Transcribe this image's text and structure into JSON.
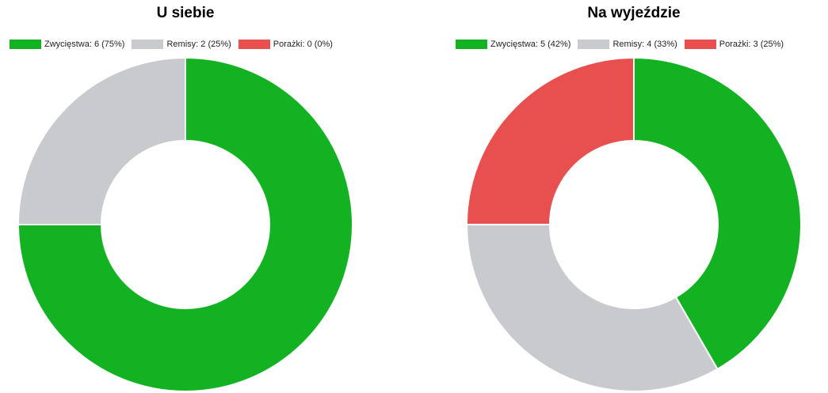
{
  "colors": {
    "wins": "#12b222",
    "draws": "#c9cacd",
    "losses": "#e85050"
  },
  "chart_data": [
    {
      "type": "pie",
      "variant": "donut",
      "title": "U siebie",
      "legend_labels": [
        "Zwycięstwa: 6 (75%)",
        "Remisy: 2 (25%)",
        "Porażki: 0 (0%)"
      ],
      "categories": [
        "Zwycięstwa",
        "Remisy",
        "Porażki"
      ],
      "values": [
        6,
        2,
        0
      ],
      "colors": [
        "#12b222",
        "#c9cacd",
        "#e85050"
      ],
      "legend_position": "top"
    },
    {
      "type": "pie",
      "variant": "donut",
      "title": "Na wyjeździe",
      "legend_labels": [
        "Zwycięstwa: 5 (42%)",
        "Remisy: 4 (33%)",
        "Porażki: 3 (25%)"
      ],
      "categories": [
        "Zwycięstwa",
        "Remisy",
        "Porażki"
      ],
      "values": [
        5,
        4,
        3
      ],
      "colors": [
        "#12b222",
        "#c9cacd",
        "#e85050"
      ],
      "legend_position": "top"
    }
  ]
}
